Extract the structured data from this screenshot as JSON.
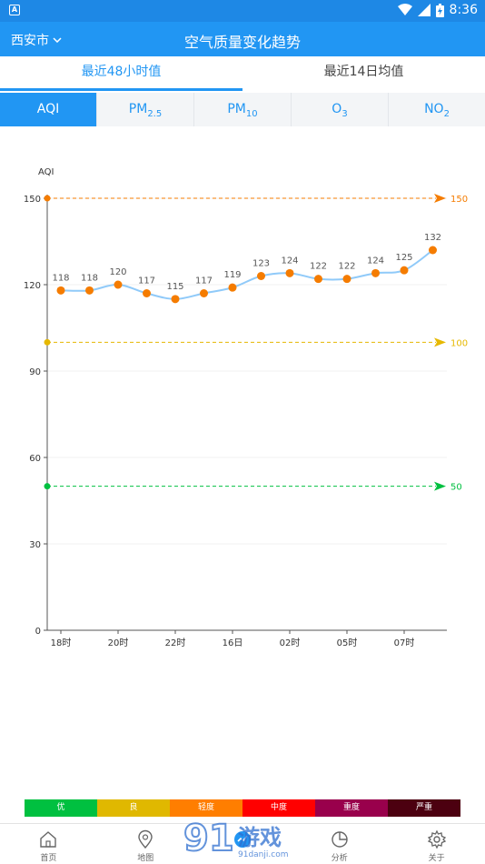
{
  "status": {
    "time": "8:36"
  },
  "app": {
    "city": "西安市",
    "title": "空气质量变化趋势"
  },
  "range_tabs": [
    {
      "label": "最近48小时值"
    },
    {
      "label": "最近14日均值"
    }
  ],
  "pollutant_tabs": [
    {
      "main": "AQI",
      "sub": ""
    },
    {
      "main": "PM",
      "sub": "2.5"
    },
    {
      "main": "PM",
      "sub": "10"
    },
    {
      "main": "O",
      "sub": "3"
    },
    {
      "main": "NO",
      "sub": "2"
    }
  ],
  "chart_data": {
    "type": "line",
    "ylabel": "AQI",
    "ylim": [
      0,
      150
    ],
    "yticks": [
      0,
      30,
      60,
      90,
      120,
      150
    ],
    "x_tick_labels": [
      "18时",
      "20时",
      "22时",
      "16日",
      "02时",
      "05时",
      "07时"
    ],
    "x_tick_indices": [
      0,
      2,
      4,
      6,
      8,
      10,
      12
    ],
    "series": [
      {
        "values": [
          118,
          118,
          120,
          117,
          115,
          117,
          119,
          123,
          124,
          122,
          122,
          124,
          125,
          132
        ],
        "color": "#f57c00"
      }
    ],
    "thresholds": [
      {
        "value": 150,
        "label": "150",
        "color": "#f57c00"
      },
      {
        "value": 100,
        "label": "100",
        "color": "#e6b800"
      },
      {
        "value": 50,
        "label": "50",
        "color": "#00c040"
      }
    ]
  },
  "legend": [
    {
      "label": "优",
      "color": "#00c040"
    },
    {
      "label": "良",
      "color": "#e0b800"
    },
    {
      "label": "轻度",
      "color": "#ff7e00"
    },
    {
      "label": "中度",
      "color": "#ff0000"
    },
    {
      "label": "重度",
      "color": "#99004c"
    },
    {
      "label": "严重",
      "color": "#4c0010"
    }
  ],
  "nav": [
    {
      "label": "首页",
      "icon": "home-icon"
    },
    {
      "label": "地图",
      "icon": "map-pin-icon"
    },
    {
      "label": "",
      "icon": "trend-icon"
    },
    {
      "label": "分析",
      "icon": "pie-icon"
    },
    {
      "label": "关于",
      "icon": "gear-icon"
    }
  ],
  "watermark": {
    "main": "91游戏",
    "sub": "91danji.com"
  }
}
